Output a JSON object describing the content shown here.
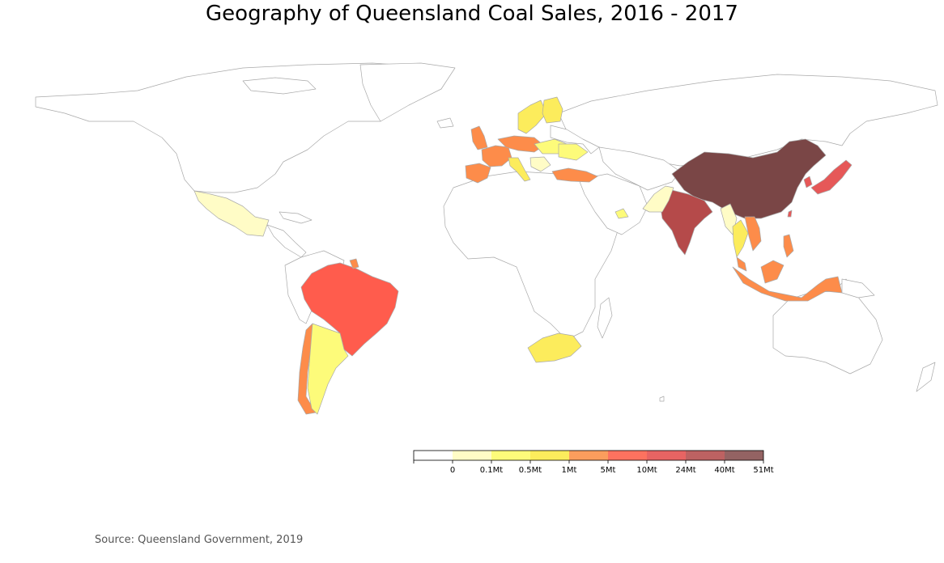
{
  "title": "Geography of Queensland Coal Sales, 2016 - 2017",
  "source": "Source: Queensland Government, 2019",
  "legend": {
    "labels": [
      "0",
      "0.1Mt",
      "0.5Mt",
      "1Mt",
      "5Mt",
      "10Mt",
      "24Mt",
      "40Mt",
      "51Mt"
    ],
    "colors": [
      "#ffffff",
      "#fffcc6",
      "#fdfb7a",
      "#fcec5c",
      "#fb9d5d",
      "#fd725f",
      "#e76463",
      "#bd6262",
      "#946363"
    ]
  },
  "colors": {
    "no_data": "#ffffff",
    "tier_0_01": "#fffcc6",
    "tier_01_05": "#fdfb7a",
    "tier_05_1": "#fcec5c",
    "tier_1_5": "#fd8c4a",
    "tier_5_10": "#ff5c4d",
    "tier_10_24": "#e65858",
    "tier_24_40": "#b54a4a",
    "tier_40_51": "#7a4646",
    "border": "#a9a9a9"
  },
  "regions": {
    "china": "tier_40_51",
    "india": "tier_24_40",
    "japan": "tier_10_24",
    "korea": "tier_10_24",
    "taiwan": "tier_10_24",
    "brazil": "tier_5_10",
    "chile": "tier_1_5",
    "indonesia": "tier_1_5",
    "vietnam": "tier_1_5",
    "philippines": "tier_1_5",
    "malaysia": "tier_1_5",
    "turkey": "tier_1_5",
    "spain": "tier_1_5",
    "france": "tier_1_5",
    "uk": "tier_1_5",
    "germany": "tier_1_5",
    "guyana": "tier_1_5",
    "argentina": "tier_01_05",
    "sweden": "tier_05_1",
    "finland": "tier_05_1",
    "italy": "tier_05_1",
    "ukraine": "tier_01_05",
    "poland": "tier_01_05",
    "thailand": "tier_05_1",
    "south_africa": "tier_05_1",
    "uae": "tier_01_05",
    "pakistan": "tier_0_01",
    "mexico": "tier_0_01",
    "myanmar": "tier_0_01",
    "balkans": "tier_0_01"
  }
}
